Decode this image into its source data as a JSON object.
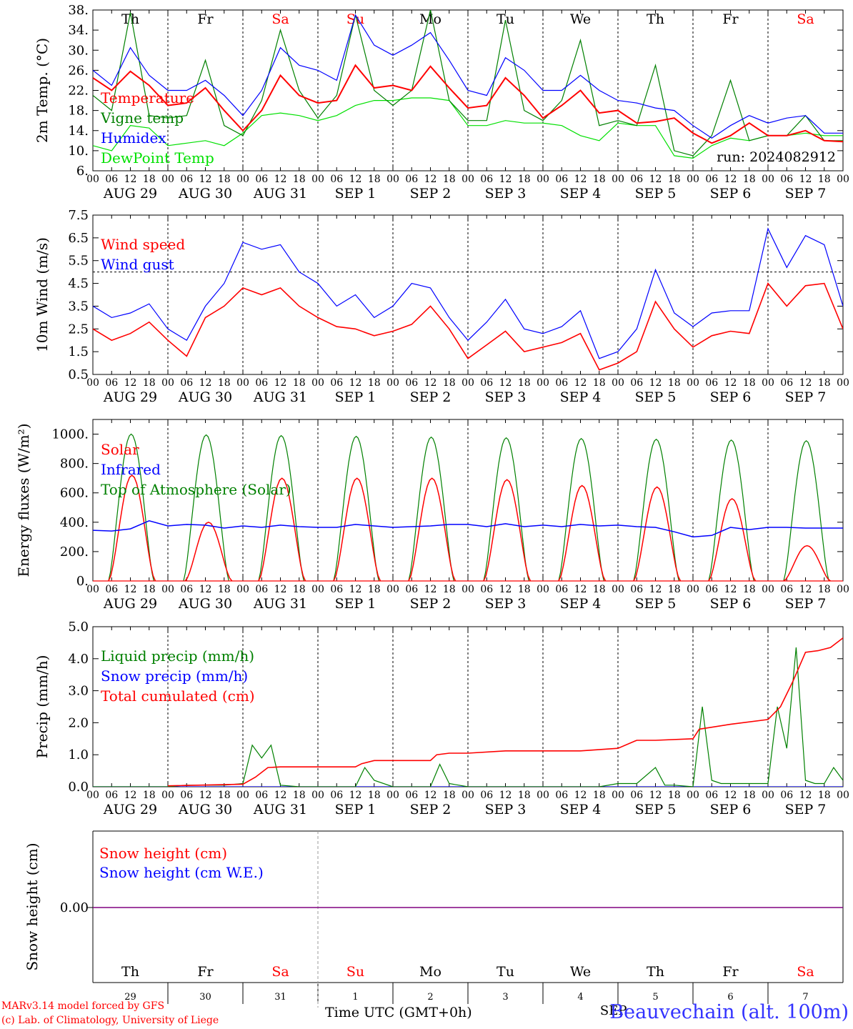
{
  "chart_data": [
    {
      "type": "line",
      "ylabel": "2m Temp. (°C)",
      "ylim": [
        6,
        38
      ],
      "yticks": [
        "6.",
        "10.",
        "14.",
        "18.",
        "22.",
        "26.",
        "30.",
        "34.",
        "38."
      ],
      "x_unit": "hours since 2024-08-29 00 UTC",
      "run_label": "run: 2024082912",
      "weekday_labels": [
        "Th",
        "Fr",
        "Sa",
        "Su",
        "Mo",
        "Tu",
        "We",
        "Th",
        "Fr",
        "Sa"
      ],
      "series": [
        {
          "name": "Temperature",
          "color": "#ff0000",
          "x": [
            0,
            6,
            12,
            18,
            24,
            30,
            36,
            42,
            48,
            54,
            60,
            66,
            72,
            78,
            84,
            90,
            96,
            102,
            108,
            114,
            120,
            126,
            132,
            138,
            144,
            150,
            156,
            162,
            168,
            174,
            180,
            186,
            192,
            198,
            204,
            210,
            216,
            222,
            228,
            234,
            240
          ],
          "y": [
            24.5,
            22,
            25.8,
            23,
            19,
            19.5,
            22.5,
            18,
            14,
            18,
            25,
            21,
            19.5,
            20,
            27,
            22.5,
            23,
            22,
            26.8,
            22.5,
            18.5,
            19,
            24.5,
            21,
            16.5,
            19,
            22,
            17.5,
            18,
            15.5,
            15.8,
            16.5,
            13.5,
            11.5,
            13,
            15.5,
            13,
            13,
            14,
            12,
            11.8
          ]
        },
        {
          "name": "Vigne temp",
          "color": "#008000",
          "x": [
            0,
            6,
            12,
            18,
            24,
            30,
            36,
            42,
            48,
            54,
            60,
            66,
            72,
            78,
            84,
            90,
            96,
            102,
            108,
            114,
            120,
            126,
            132,
            138,
            144,
            150,
            156,
            162,
            168,
            174,
            180,
            186,
            192,
            198,
            204,
            210,
            216,
            222,
            228,
            234,
            240
          ],
          "y": [
            21,
            18,
            37.5,
            17,
            16.5,
            17,
            28,
            15,
            13,
            20,
            34,
            22,
            16.5,
            21,
            37,
            22,
            19,
            22,
            38,
            20,
            16,
            16,
            36,
            18,
            16,
            20,
            32,
            15,
            16,
            15,
            27,
            10,
            9,
            13,
            24,
            12,
            13,
            13,
            17,
            12,
            12
          ]
        },
        {
          "name": "Humidex",
          "color": "#0000ff",
          "x": [
            0,
            6,
            12,
            18,
            24,
            30,
            36,
            42,
            48,
            54,
            60,
            66,
            72,
            78,
            84,
            90,
            96,
            102,
            108,
            114,
            120,
            126,
            132,
            138,
            144,
            150,
            156,
            162,
            168,
            174,
            180,
            186,
            192,
            198,
            204,
            210,
            216,
            222,
            228,
            234,
            240
          ],
          "y": [
            26,
            23,
            30.5,
            25,
            22,
            22,
            24,
            21,
            17,
            22,
            30.5,
            27,
            26,
            24,
            37,
            31,
            29,
            31,
            33.5,
            28,
            22,
            21,
            28.5,
            26,
            22,
            22,
            25,
            22,
            20,
            19.5,
            18.5,
            18,
            15,
            12.5,
            15,
            17,
            15.5,
            16.5,
            17,
            13.5,
            13.5
          ]
        },
        {
          "name": "DewPoint Temp",
          "color": "#00e000",
          "x": [
            0,
            6,
            12,
            18,
            24,
            30,
            36,
            42,
            48,
            54,
            60,
            66,
            72,
            78,
            84,
            90,
            96,
            102,
            108,
            114,
            120,
            126,
            132,
            138,
            144,
            150,
            156,
            162,
            168,
            174,
            180,
            186,
            192,
            198,
            204,
            210,
            216,
            222,
            228,
            234,
            240
          ],
          "y": [
            11,
            10,
            15,
            14.5,
            11,
            11.5,
            12,
            11,
            13.5,
            17,
            17.5,
            17,
            16,
            17,
            19,
            20,
            20,
            20.5,
            20.5,
            20,
            15,
            15,
            16,
            15.5,
            15.5,
            15,
            13,
            12,
            15.5,
            15,
            15,
            9,
            8.5,
            11,
            12.5,
            12,
            13,
            13,
            13.5,
            13,
            13
          ]
        }
      ]
    },
    {
      "type": "line",
      "ylabel": "10m Wind (m/s)",
      "ylim": [
        0.5,
        7.5
      ],
      "yticks": [
        "0.5",
        "1.5",
        "2.5",
        "3.5",
        "4.5",
        "5.5",
        "6.5",
        "7.5"
      ],
      "reference_line": 5.0,
      "series": [
        {
          "name": "Wind speed",
          "color": "#ff0000",
          "x": [
            0,
            6,
            12,
            18,
            24,
            30,
            36,
            42,
            48,
            54,
            60,
            66,
            72,
            78,
            84,
            90,
            96,
            102,
            108,
            114,
            120,
            126,
            132,
            138,
            144,
            150,
            156,
            162,
            168,
            174,
            180,
            186,
            192,
            198,
            204,
            210,
            216,
            222,
            228,
            234,
            240
          ],
          "y": [
            2.5,
            2.0,
            2.3,
            2.8,
            2.0,
            1.3,
            3.0,
            3.5,
            4.3,
            4.0,
            4.3,
            3.5,
            3.0,
            2.6,
            2.5,
            2.2,
            2.4,
            2.7,
            3.5,
            2.5,
            1.2,
            1.8,
            2.4,
            1.5,
            1.7,
            1.9,
            2.3,
            0.7,
            1.0,
            1.5,
            3.7,
            2.5,
            1.7,
            2.2,
            2.4,
            2.3,
            4.5,
            3.5,
            4.4,
            4.5,
            2.5
          ]
        },
        {
          "name": "Wind gust",
          "color": "#0000ff",
          "x": [
            0,
            6,
            12,
            18,
            24,
            30,
            36,
            42,
            48,
            54,
            60,
            66,
            72,
            78,
            84,
            90,
            96,
            102,
            108,
            114,
            120,
            126,
            132,
            138,
            144,
            150,
            156,
            162,
            168,
            174,
            180,
            186,
            192,
            198,
            204,
            210,
            216,
            222,
            228,
            234,
            240
          ],
          "y": [
            3.5,
            3.0,
            3.2,
            3.6,
            2.5,
            2.0,
            3.5,
            4.5,
            6.3,
            6.0,
            6.2,
            5.0,
            4.5,
            3.5,
            4.0,
            3.0,
            3.5,
            4.5,
            4.3,
            3.0,
            2.0,
            2.8,
            3.8,
            2.5,
            2.3,
            2.6,
            3.3,
            1.2,
            1.5,
            2.5,
            5.1,
            3.2,
            2.6,
            3.2,
            3.3,
            3.3,
            6.9,
            5.2,
            6.6,
            6.2,
            3.5
          ]
        }
      ]
    },
    {
      "type": "line",
      "ylabel": "Energy fluxes (W/m²)",
      "ylim": [
        0,
        1100
      ],
      "yticks": [
        "0.",
        "200.",
        "400.",
        "600.",
        "800.",
        "1000."
      ],
      "series": [
        {
          "name": "Solar",
          "color": "#ff0000",
          "days": [
            {
              "peak_hour": 12.5,
              "peak": 720
            },
            {
              "peak_hour": 37,
              "peak": 400
            },
            {
              "peak_hour": 60.5,
              "peak": 700
            },
            {
              "peak_hour": 84.5,
              "peak": 700
            },
            {
              "peak_hour": 108.5,
              "peak": 700
            },
            {
              "peak_hour": 132.5,
              "peak": 690
            },
            {
              "peak_hour": 156.5,
              "peak": 650
            },
            {
              "peak_hour": 180.5,
              "peak": 640
            },
            {
              "peak_hour": 204.5,
              "peak": 560
            },
            {
              "peak_hour": 228.5,
              "peak": 240
            }
          ]
        },
        {
          "name": "Infrared",
          "color": "#0000ff",
          "x": [
            0,
            6,
            12,
            18,
            24,
            30,
            36,
            42,
            48,
            54,
            60,
            66,
            72,
            78,
            84,
            90,
            96,
            102,
            108,
            114,
            120,
            126,
            132,
            138,
            144,
            150,
            156,
            162,
            168,
            174,
            180,
            186,
            192,
            198,
            204,
            210,
            216,
            222,
            228,
            234,
            240
          ],
          "y": [
            345,
            340,
            355,
            410,
            375,
            385,
            380,
            360,
            375,
            365,
            380,
            370,
            365,
            365,
            385,
            375,
            365,
            370,
            375,
            385,
            385,
            370,
            390,
            370,
            380,
            370,
            385,
            375,
            380,
            370,
            365,
            335,
            300,
            310,
            365,
            350,
            365,
            365,
            360,
            360,
            360
          ]
        },
        {
          "name": "Top of Atmosphere (Solar)",
          "color": "#008000",
          "daily_peak": [
            1000,
            995,
            990,
            985,
            980,
            975,
            970,
            965,
            960,
            955
          ],
          "day_start_hour": 5,
          "day_end_hour": 19.5
        }
      ]
    },
    {
      "type": "line",
      "ylabel": "Precip (mm/h)",
      "ylim": [
        0,
        5.0
      ],
      "yticks": [
        "0.0",
        "1.0",
        "2.0",
        "3.0",
        "4.0",
        "5.0"
      ],
      "series": [
        {
          "name": "Liquid precip (mm/h)",
          "color": "#008000",
          "x": [
            0,
            24,
            30,
            36,
            42,
            48,
            51,
            54,
            57,
            60,
            66,
            72,
            84,
            87,
            90,
            96,
            108,
            111,
            114,
            120,
            132,
            144,
            156,
            162,
            168,
            174,
            180,
            183,
            186,
            192,
            195,
            198,
            201,
            204,
            210,
            216,
            219,
            222,
            225,
            228,
            231,
            234,
            237,
            240
          ],
          "y": [
            0,
            0,
            0.05,
            0.05,
            0.05,
            0.1,
            1.3,
            0.9,
            1.3,
            0.05,
            0,
            0,
            0,
            0.6,
            0.2,
            0,
            0,
            0.7,
            0.1,
            0,
            0,
            0,
            0,
            0,
            0.1,
            0.1,
            0.6,
            0.05,
            0.05,
            0,
            2.5,
            0.2,
            0.1,
            0.1,
            0.1,
            0.1,
            2.5,
            1.2,
            4.35,
            0.2,
            0.1,
            0.1,
            0.6,
            0.2
          ]
        },
        {
          "name": "Snow precip (mm/h)",
          "color": "#0000ff",
          "x": [
            0,
            240
          ],
          "y": [
            0,
            0
          ]
        },
        {
          "name": "Total cumulated (cm)",
          "color": "#ff0000",
          "x": [
            24,
            48,
            52,
            56,
            60,
            72,
            84,
            86,
            90,
            108,
            110,
            114,
            120,
            132,
            144,
            156,
            168,
            174,
            180,
            192,
            194,
            204,
            216,
            220,
            224,
            228,
            232,
            236,
            240
          ],
          "y": [
            0.03,
            0.08,
            0.3,
            0.6,
            0.62,
            0.62,
            0.62,
            0.72,
            0.82,
            0.82,
            1.0,
            1.05,
            1.05,
            1.12,
            1.12,
            1.12,
            1.2,
            1.45,
            1.45,
            1.5,
            1.8,
            1.95,
            2.1,
            2.5,
            3.3,
            4.2,
            4.25,
            4.35,
            4.65
          ]
        }
      ]
    },
    {
      "type": "line",
      "ylabel": "Snow height (cm)",
      "ytick": "0.00",
      "series": [
        {
          "name": "Snow height (cm)",
          "color": "#ff0000",
          "x": [
            0,
            240
          ],
          "y": [
            0,
            0
          ]
        },
        {
          "name": "Snow height (cm W.E.)",
          "color": "#0000ff",
          "x": [
            0,
            240
          ],
          "y": [
            0,
            0
          ]
        }
      ]
    }
  ],
  "time_axis": {
    "hour_ticks": [
      "00",
      "06",
      "12",
      "18"
    ],
    "date_labels": [
      "AUG 29",
      "AUG 30",
      "AUG 31",
      "SEP  1",
      "SEP  2",
      "SEP  3",
      "SEP  4",
      "SEP  5",
      "SEP  6",
      "SEP  7"
    ],
    "weekday_labels": [
      "Th",
      "Fr",
      "Sa",
      "Su",
      "Mo",
      "Tu",
      "We",
      "Th",
      "Fr",
      "Sa"
    ],
    "weekend_color": "#ff0000",
    "day_numbers": [
      "29",
      "30",
      "31",
      "1",
      "2",
      "3",
      "4",
      "5",
      "6",
      "7"
    ],
    "month_mark": "SEP"
  },
  "footer": {
    "model_line": "MARv3.14 model forced by GFS",
    "credit_line": "(c) Lab. of Climatology, University of Liege",
    "x_title": "Time UTC (GMT+0h)",
    "station": "Beauvechain (alt. 100m)"
  }
}
